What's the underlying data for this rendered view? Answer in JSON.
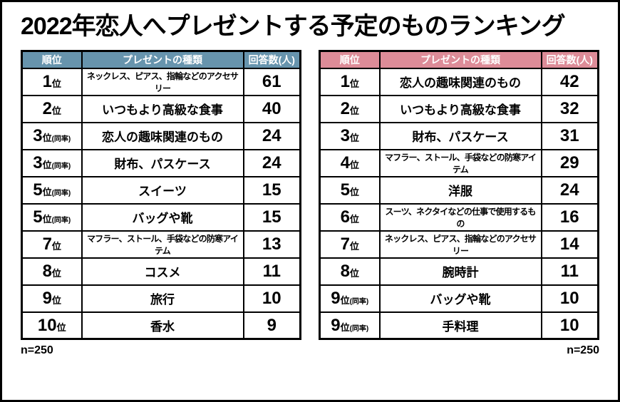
{
  "title": "2022年恋人へプレゼントする予定のものランキング",
  "chart_data": [
    {
      "type": "table",
      "accent": "#6794ad",
      "headers": {
        "rank": "順位",
        "item": "プレゼントの種類",
        "count": "回答数(人)"
      },
      "rows": [
        {
          "rank": "1",
          "unit": "位",
          "tie": "",
          "item": "ネックレス、ピアス、指輪などのアクセサリー",
          "count": "61"
        },
        {
          "rank": "2",
          "unit": "位",
          "tie": "",
          "item": "いつもより高級な食事",
          "count": "40"
        },
        {
          "rank": "3",
          "unit": "位",
          "tie": "(同率)",
          "item": "恋人の趣味関連のもの",
          "count": "24"
        },
        {
          "rank": "3",
          "unit": "位",
          "tie": "(同率)",
          "item": "財布、パスケース",
          "count": "24"
        },
        {
          "rank": "5",
          "unit": "位",
          "tie": "(同率)",
          "item": "スイーツ",
          "count": "15"
        },
        {
          "rank": "5",
          "unit": "位",
          "tie": "(同率)",
          "item": "バッグや靴",
          "count": "15"
        },
        {
          "rank": "7",
          "unit": "位",
          "tie": "",
          "item": "マフラー、ストール、手袋などの防寒アイテム",
          "count": "13"
        },
        {
          "rank": "8",
          "unit": "位",
          "tie": "",
          "item": "コスメ",
          "count": "11"
        },
        {
          "rank": "9",
          "unit": "位",
          "tie": "",
          "item": "旅行",
          "count": "10"
        },
        {
          "rank": "10",
          "unit": "位",
          "tie": "",
          "item": "香水",
          "count": "9"
        }
      ],
      "sample_label": "n=250"
    },
    {
      "type": "table",
      "accent": "#dd8c98",
      "headers": {
        "rank": "順位",
        "item": "プレゼントの種類",
        "count": "回答数(人)"
      },
      "rows": [
        {
          "rank": "1",
          "unit": "位",
          "tie": "",
          "item": "恋人の趣味関連のもの",
          "count": "42"
        },
        {
          "rank": "2",
          "unit": "位",
          "tie": "",
          "item": "いつもより高級な食事",
          "count": "32"
        },
        {
          "rank": "3",
          "unit": "位",
          "tie": "",
          "item": "財布、パスケース",
          "count": "31"
        },
        {
          "rank": "4",
          "unit": "位",
          "tie": "",
          "item": "マフラー、ストール、手袋などの防寒アイテム",
          "count": "29"
        },
        {
          "rank": "5",
          "unit": "位",
          "tie": "",
          "item": "洋服",
          "count": "24"
        },
        {
          "rank": "6",
          "unit": "位",
          "tie": "",
          "item": "スーツ、ネクタイなどの仕事で使用するもの",
          "count": "16"
        },
        {
          "rank": "7",
          "unit": "位",
          "tie": "",
          "item": "ネックレス、ピアス、指輪などのアクセサリー",
          "count": "14"
        },
        {
          "rank": "8",
          "unit": "位",
          "tie": "",
          "item": "腕時計",
          "count": "11"
        },
        {
          "rank": "9",
          "unit": "位",
          "tie": "(同率)",
          "item": "バッグや靴",
          "count": "10"
        },
        {
          "rank": "9",
          "unit": "位",
          "tie": "(同率)",
          "item": "手料理",
          "count": "10"
        }
      ],
      "sample_label": "n=250"
    }
  ]
}
